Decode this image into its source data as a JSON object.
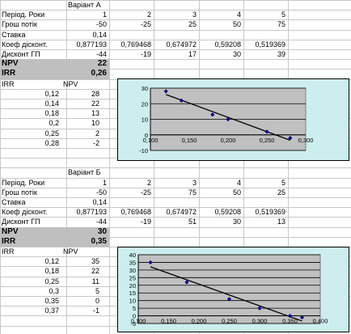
{
  "scenarioA": {
    "title": "Варіант А",
    "rows": [
      {
        "label": "Період. Роки",
        "values": [
          "1",
          "2",
          "3",
          "4",
          "5"
        ]
      },
      {
        "label": "Грош потік",
        "values": [
          "-50",
          "-25",
          "25",
          "50",
          "75"
        ]
      },
      {
        "label": "Ставка",
        "values": [
          "0,14",
          "",
          "",
          "",
          ""
        ]
      },
      {
        "label": "Коеф дісконт.",
        "values": [
          "0,877193",
          "0,769468",
          "0,674972",
          "0,59208",
          "0,519369"
        ]
      },
      {
        "label": "Дисконт ГП",
        "values": [
          "-44",
          "-19",
          "17",
          "30",
          "39"
        ]
      }
    ],
    "npv_label": "NPV",
    "npv_value": "22",
    "irr_label": "IRR",
    "irr_value": "0,26",
    "table_headers": [
      "IRR",
      "NPV"
    ],
    "table": [
      [
        "0,12",
        "28"
      ],
      [
        "0,14",
        "22"
      ],
      [
        "0,18",
        "13"
      ],
      [
        "0,2",
        "10"
      ],
      [
        "0,25",
        "2"
      ],
      [
        "0,28",
        "-2"
      ]
    ],
    "chart_data": {
      "type": "scatter",
      "points": [
        {
          "x": 0.12,
          "y": 28
        },
        {
          "x": 0.14,
          "y": 22
        },
        {
          "x": 0.18,
          "y": 13
        },
        {
          "x": 0.2,
          "y": 10
        },
        {
          "x": 0.25,
          "y": 2
        },
        {
          "x": 0.28,
          "y": -2
        }
      ],
      "trendline": true,
      "xlim": [
        0.1,
        0.3
      ],
      "ylim": [
        -10,
        30
      ],
      "xticks": [
        "0,100",
        "0,150",
        "0,200",
        "0,250",
        "0,300"
      ],
      "yticks": [
        "30",
        "20",
        "10",
        "0",
        "-10"
      ],
      "grid": true,
      "marker_color": "#00008b",
      "plot_bg": "#c0c0c0",
      "chart_bg": "#cdeeee"
    }
  },
  "scenarioB": {
    "title": "Варіант Б",
    "rows": [
      {
        "label": "Період. Роки",
        "values": [
          "1",
          "2",
          "3",
          "4",
          "5"
        ]
      },
      {
        "label": "Грош потік",
        "values": [
          "-50",
          "-25",
          "75",
          "50",
          "25"
        ]
      },
      {
        "label": "Ставка",
        "values": [
          "0,14",
          "",
          "",
          "",
          ""
        ]
      },
      {
        "label": "Коеф дісконт.",
        "values": [
          "0,877193",
          "0,769468",
          "0,674972",
          "0,59208",
          "0,519369"
        ]
      },
      {
        "label": "Дисконт ГП",
        "values": [
          "-44",
          "-19",
          "51",
          "30",
          "13"
        ]
      }
    ],
    "npv_label": "NPV",
    "npv_value": "30",
    "irr_label": "IRR",
    "irr_value": "0,35",
    "table_headers": [
      "IRR",
      "NPV"
    ],
    "table": [
      [
        "0,12",
        "35"
      ],
      [
        "0,18",
        "22"
      ],
      [
        "0,25",
        "11"
      ],
      [
        "0,3",
        "5"
      ],
      [
        "0,35",
        "0"
      ],
      [
        "0,37",
        "-1"
      ]
    ],
    "chart_data": {
      "type": "scatter",
      "points": [
        {
          "x": 0.12,
          "y": 35
        },
        {
          "x": 0.18,
          "y": 22
        },
        {
          "x": 0.25,
          "y": 11
        },
        {
          "x": 0.3,
          "y": 5
        },
        {
          "x": 0.35,
          "y": 0
        },
        {
          "x": 0.37,
          "y": -1
        }
      ],
      "trendline": true,
      "xlim": [
        0.1,
        0.4
      ],
      "ylim": [
        -5,
        40
      ],
      "xticks": [
        "0,100",
        "0,150",
        "0,200",
        "0,250",
        "0,300",
        "0,350",
        "0,400"
      ],
      "yticks": [
        "40",
        "35",
        "30",
        "25",
        "20",
        "15",
        "10",
        "5",
        "0",
        "-5"
      ],
      "grid": true,
      "marker_color": "#00008b",
      "plot_bg": "#c0c0c0",
      "chart_bg": "#cdeeee"
    }
  }
}
